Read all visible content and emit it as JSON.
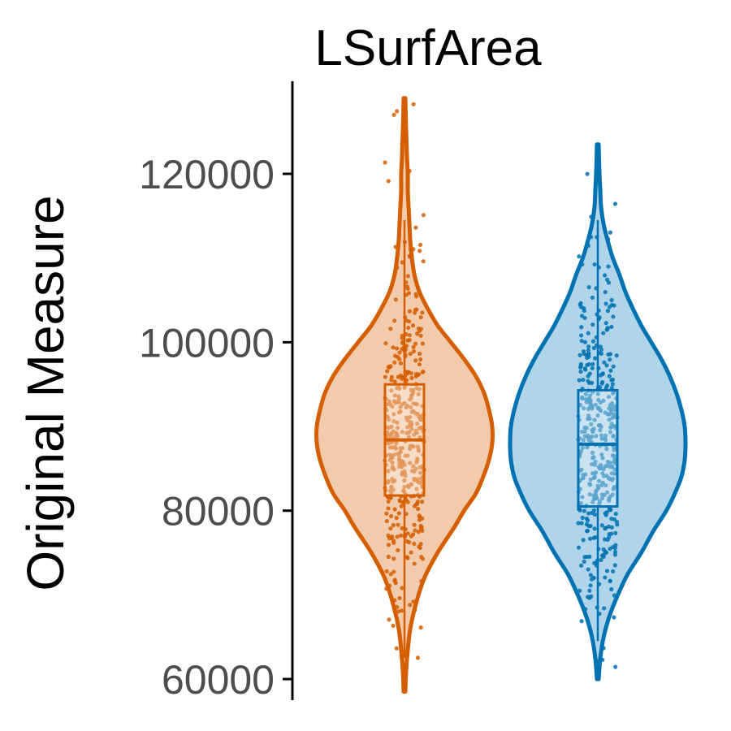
{
  "chart_data": {
    "type": "violin",
    "title": "LSurfArea",
    "xlabel": "",
    "ylabel": "Original Measure",
    "ylim": [
      57500,
      131000
    ],
    "y_ticks": [
      "60000",
      "80000",
      "100000",
      "120000"
    ],
    "y_tick_values": [
      60000,
      80000,
      100000,
      120000
    ],
    "grid": false,
    "legend": "none",
    "series": [
      {
        "color": "#d55e00",
        "fill": "#f2cbac",
        "min": 58500,
        "max": 129000,
        "q1": 81800,
        "median": 88400,
        "q3": 95000,
        "whisker_low": 62500,
        "whisker_high": 114500,
        "density": [
          [
            58500,
            1
          ],
          [
            61000,
            2
          ],
          [
            63500,
            4
          ],
          [
            66000,
            7
          ],
          [
            69000,
            14
          ],
          [
            72000,
            24
          ],
          [
            75000,
            40
          ],
          [
            78000,
            60
          ],
          [
            80000,
            72
          ],
          [
            82000,
            86
          ],
          [
            84000,
            95
          ],
          [
            86000,
            102
          ],
          [
            88000,
            106
          ],
          [
            90000,
            106
          ],
          [
            92000,
            102
          ],
          [
            94000,
            96
          ],
          [
            96000,
            86
          ],
          [
            98000,
            72
          ],
          [
            100000,
            56
          ],
          [
            102000,
            40
          ],
          [
            104000,
            28
          ],
          [
            106000,
            18
          ],
          [
            108000,
            12
          ],
          [
            110000,
            9
          ],
          [
            112000,
            7
          ],
          [
            114000,
            6
          ],
          [
            116000,
            5
          ],
          [
            118000,
            4
          ],
          [
            120000,
            4
          ],
          [
            122000,
            3
          ],
          [
            125000,
            2
          ],
          [
            129000,
            1
          ]
        ]
      },
      {
        "color": "#0072b2",
        "fill": "#b0d4ea",
        "min": 60000,
        "max": 123500,
        "q1": 80500,
        "median": 87900,
        "q3": 94300,
        "whisker_low": 64500,
        "whisker_high": 114500,
        "density": [
          [
            60000,
            1
          ],
          [
            62500,
            3
          ],
          [
            65000,
            7
          ],
          [
            67500,
            14
          ],
          [
            70000,
            24
          ],
          [
            72500,
            36
          ],
          [
            75000,
            52
          ],
          [
            77500,
            66
          ],
          [
            80000,
            82
          ],
          [
            82000,
            92
          ],
          [
            84000,
            100
          ],
          [
            86000,
            104
          ],
          [
            88000,
            105
          ],
          [
            90000,
            104
          ],
          [
            92000,
            100
          ],
          [
            94000,
            94
          ],
          [
            96000,
            86
          ],
          [
            98000,
            76
          ],
          [
            100000,
            64
          ],
          [
            102000,
            52
          ],
          [
            104000,
            42
          ],
          [
            106000,
            33
          ],
          [
            108000,
            26
          ],
          [
            110000,
            18
          ],
          [
            112000,
            12
          ],
          [
            114000,
            7
          ],
          [
            116000,
            4
          ],
          [
            118000,
            3
          ],
          [
            120000,
            2
          ],
          [
            123500,
            1
          ]
        ]
      }
    ]
  }
}
